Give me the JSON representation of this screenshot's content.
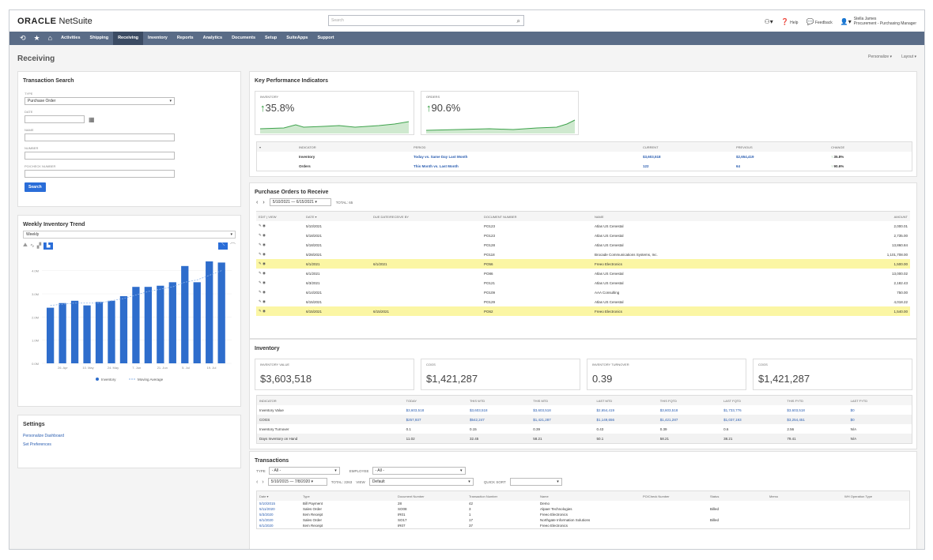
{
  "app": {
    "logo_strong": "ORACLE",
    "logo_rest": " NetSuite",
    "search_placeholder": "Search",
    "tools": {
      "help": "Help",
      "feedback": "Feedback",
      "user_name": "Stella James",
      "user_role": "Procurement - Purchasing Manager"
    }
  },
  "nav": [
    "Activities",
    "Shipping",
    "Receiving",
    "Inventory",
    "Reports",
    "Analytics",
    "Documents",
    "Setup",
    "SuiteApps",
    "Support"
  ],
  "page": {
    "title": "Receiving",
    "personalize": "Personalize ▾",
    "layout": "Layout ▾"
  },
  "txsearch": {
    "title": "Transaction Search",
    "type_label": "TYPE",
    "type_value": "Purchase Order",
    "date_label": "DATE",
    "name_label": "NAME",
    "number_label": "NUMBER",
    "po_label": "PO/CHECK NUMBER",
    "search_btn": "Search"
  },
  "trend": {
    "title": "Weekly Inventory Trend",
    "period": "Weekly",
    "legend_a": "Inventory",
    "legend_b": "Moving Average"
  },
  "chart_data": {
    "type": "bar",
    "yticks": [
      "0.0M",
      "1.0M",
      "2.0M",
      "3.0M",
      "4.0M"
    ],
    "xticks": [
      "26. Apr",
      "10. May",
      "24. May",
      "7. Jun",
      "21. Jun",
      "5. Jul",
      "19. Jul"
    ],
    "values": [
      2.4,
      2.6,
      2.7,
      2.5,
      2.65,
      2.7,
      2.9,
      3.3,
      3.3,
      3.35,
      3.5,
      4.2,
      3.5,
      4.4,
      4.35
    ],
    "moving_average": [
      2.5,
      2.55,
      2.6,
      2.6,
      2.6,
      2.7,
      2.8,
      2.95,
      3.1,
      3.2,
      3.3,
      3.5,
      3.6,
      3.8,
      4.0
    ],
    "ylim": [
      0,
      4.5
    ],
    "series": [
      {
        "name": "Inventory"
      },
      {
        "name": "Moving Average"
      }
    ]
  },
  "settings": {
    "title": "Settings",
    "l1": "Personalize Dashboard",
    "l2": "Set Preferences"
  },
  "kpi": {
    "title": "Key Performance Indicators",
    "box1_label": "INVENTORY",
    "box1_value": "35.8%",
    "box2_label": "ORDERS",
    "box2_value": "90.6%",
    "headers": [
      "INDICATOR",
      "PERIOD",
      "CURRENT",
      "PREVIOUS",
      "CHANGE"
    ],
    "rows": [
      [
        "Inventory",
        "Today vs. Same Day Last Month",
        "$3,603,518",
        "$2,654,419",
        "35.8%"
      ],
      [
        "Orders",
        "This Month vs. Last Month",
        "122",
        "64",
        "90.6%"
      ]
    ]
  },
  "po": {
    "title": "Purchase Orders to Receive",
    "range": "5/10/2021 — 6/15/2021 ▾",
    "total": "TOTAL: 65",
    "headers": [
      "Edit | View",
      "Date ▾",
      "Due Date/Receive By",
      "Document Number",
      "Name",
      "Amount"
    ],
    "rows": [
      [
        "5/10/2021",
        "",
        "PO123",
        "Atlas US Cenestal",
        "2,000.01",
        false
      ],
      [
        "5/18/2021",
        "",
        "PO123",
        "Atlas US Cenestal",
        "2,735.00",
        false
      ],
      [
        "5/18/2021",
        "",
        "PO128",
        "Atlas US Cenestal",
        "13,860.84",
        false
      ],
      [
        "5/28/2021",
        "",
        "PO118",
        "Brocade Communications Systems, Inc.",
        "1,101,708.00",
        false
      ],
      [
        "6/1/2021",
        "6/1/2021",
        "PO56",
        "Freeo Electronics",
        "1,500.00",
        true
      ],
      [
        "6/1/2021",
        "",
        "PO86",
        "Atlas US Cenestal",
        "13,000.02",
        false
      ],
      [
        "6/3/2021",
        "",
        "PO121",
        "Atlas US Cenestal",
        "2,182.43",
        false
      ],
      [
        "6/14/2021",
        "",
        "PO109",
        "AAA Consulting",
        "750.00",
        false
      ],
      [
        "6/15/2021",
        "",
        "PO129",
        "Atlas US Cenestal",
        "4,018.22",
        false
      ],
      [
        "6/15/2021",
        "6/15/2021",
        "PO62",
        "Freeo Electronics",
        "1,540.00",
        true
      ]
    ]
  },
  "inv": {
    "title": "Inventory",
    "boxes": [
      [
        "INVENTORY VALUE",
        "$3,603,518"
      ],
      [
        "COGS",
        "$1,421,287"
      ],
      [
        "INVENTORY TURNOVER",
        "0.39"
      ],
      [
        "COGS",
        "$1,421,287"
      ]
    ],
    "headers": [
      "INDICATOR",
      "TODAY",
      "THIS WTD",
      "THIS MTD",
      "LAST MTD",
      "THIS FQTD",
      "LAST FQTD",
      "THIS FYTD",
      "LAST FYTD"
    ],
    "rows": [
      [
        "Inventory Value",
        "$3,603,518",
        "$3,603,518",
        "$3,603,518",
        "$2,654,419",
        "$3,603,518",
        "$1,733,776",
        "$3,603,518",
        "$0"
      ],
      [
        "COGS",
        "$257,937",
        "$542,247",
        "$1,421,287",
        "$1,149,656",
        "$1,421,287",
        "$1,037,193",
        "$3,254,451",
        "$0"
      ],
      [
        "Inventory Turnover",
        "0.1",
        "0.15",
        "0.39",
        "0.43",
        "0.39",
        "0.6",
        "2.56",
        "N/A"
      ],
      [
        "Days Inventory on Hand",
        "11.02",
        "32.45",
        "58.21",
        "50.1",
        "58.21",
        "38.21",
        "79.41",
        "N/A"
      ]
    ]
  },
  "tx": {
    "title": "Transactions",
    "type_label": "TYPE",
    "type_value": "- All -",
    "emp_label": "EMPLOYEE",
    "emp_value": "- All -",
    "range": "5/10/2015 — 7/8/2020 ▾",
    "total": "TOTAL: 2263",
    "view_label": "VIEW",
    "view_value": "Default",
    "qs_label": "QUICK SORT",
    "headers": [
      "Date ▾",
      "Type",
      "Document Number",
      "Transaction Number",
      "Name",
      "PO/Check Number",
      "Status",
      "Memo",
      "WH Operation Type"
    ],
    "rows": [
      [
        "5/10/2015",
        "Bill Payment",
        "28",
        "42",
        "Demo",
        "",
        "",
        "",
        ""
      ],
      [
        "5/11/2020",
        "Sales Order",
        "SO08",
        "3",
        "Alpaer Technologies",
        "",
        "Billed",
        "",
        ""
      ],
      [
        "5/3/2020",
        "Item Receipt",
        "IR01",
        "1",
        "Freeo Electronics",
        "",
        "",
        "",
        ""
      ],
      [
        "6/1/2020",
        "Sales Order",
        "SO17",
        "17",
        "Northgate Information Solutions",
        "",
        "Billed",
        "",
        ""
      ],
      [
        "6/1/2020",
        "Item Receipt",
        "IR07",
        "37",
        "Freeo Electronics",
        "",
        "",
        "",
        ""
      ]
    ]
  }
}
